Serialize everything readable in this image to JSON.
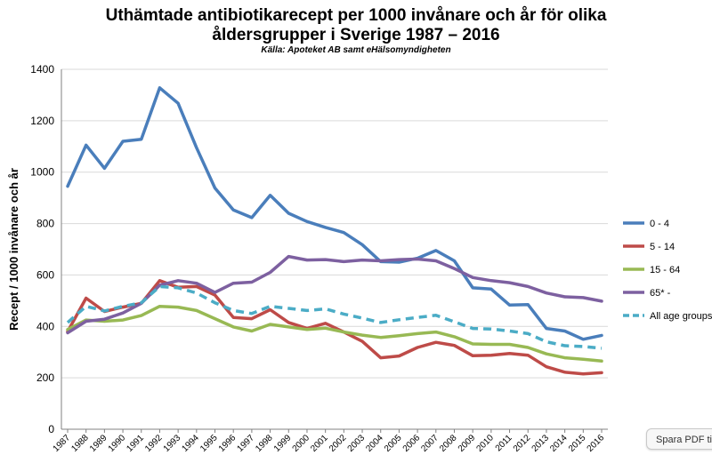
{
  "chart_data": {
    "type": "line",
    "title_line1": "Uthämtade antibiotikarecept per 1000 invånare och år för olika",
    "title_line2": "åldersgrupper i Sverige 1987 – 2016",
    "subtitle": "Källa: Apoteket AB samt eHälsomyndigheten",
    "xlabel": "",
    "ylabel": "Recept / 1000 invånare och år",
    "ylim": [
      0,
      1400
    ],
    "yticks": [
      0,
      200,
      400,
      600,
      800,
      1000,
      1200,
      1400
    ],
    "grid": true,
    "legend_position": "right",
    "x": [
      "1987",
      "1988",
      "1989",
      "1990",
      "1991",
      "1992",
      "1993",
      "1994",
      "1995",
      "1996",
      "1997",
      "1998",
      "1999",
      "2000",
      "2001",
      "2002",
      "2003",
      "2004",
      "2005",
      "2006",
      "2007",
      "2008",
      "2009",
      "2010",
      "2011",
      "2012",
      "2013",
      "2014",
      "2015",
      "2016"
    ],
    "series": [
      {
        "name": "0 - 4",
        "color": "#4a7ebb",
        "dashed": false,
        "values": [
          945,
          1105,
          1015,
          1120,
          1128,
          1328,
          1268,
          1095,
          938,
          853,
          823,
          910,
          840,
          808,
          785,
          765,
          718,
          652,
          650,
          665,
          695,
          655,
          550,
          545,
          483,
          485,
          392,
          382,
          350,
          365
        ]
      },
      {
        "name": "5 - 14",
        "color": "#be4b48",
        "dashed": false,
        "values": [
          380,
          510,
          458,
          475,
          490,
          578,
          552,
          555,
          522,
          435,
          430,
          465,
          415,
          392,
          412,
          378,
          342,
          278,
          285,
          318,
          338,
          326,
          286,
          288,
          295,
          288,
          243,
          222,
          215,
          220
        ]
      },
      {
        "name": "15 - 64",
        "color": "#98b954",
        "dashed": false,
        "values": [
          388,
          425,
          420,
          425,
          442,
          478,
          475,
          462,
          430,
          398,
          382,
          408,
          398,
          388,
          393,
          378,
          366,
          357,
          364,
          372,
          378,
          360,
          332,
          330,
          330,
          318,
          293,
          278,
          272,
          265
        ]
      },
      {
        "name": "65* -",
        "color": "#7d60a0",
        "dashed": false,
        "values": [
          375,
          420,
          428,
          452,
          490,
          560,
          578,
          568,
          532,
          568,
          572,
          610,
          672,
          658,
          660,
          652,
          658,
          655,
          660,
          662,
          655,
          625,
          590,
          578,
          570,
          555,
          530,
          515,
          512,
          498
        ]
      },
      {
        "name": "All age groups",
        "color": "#4bacc6",
        "dashed": true,
        "values": [
          415,
          478,
          460,
          478,
          492,
          555,
          550,
          530,
          492,
          462,
          450,
          478,
          470,
          462,
          468,
          448,
          432,
          415,
          426,
          435,
          443,
          418,
          392,
          390,
          382,
          372,
          340,
          325,
          322,
          315
        ]
      }
    ]
  },
  "ui": {
    "pdf_button_label": "Spara PDF ti"
  }
}
